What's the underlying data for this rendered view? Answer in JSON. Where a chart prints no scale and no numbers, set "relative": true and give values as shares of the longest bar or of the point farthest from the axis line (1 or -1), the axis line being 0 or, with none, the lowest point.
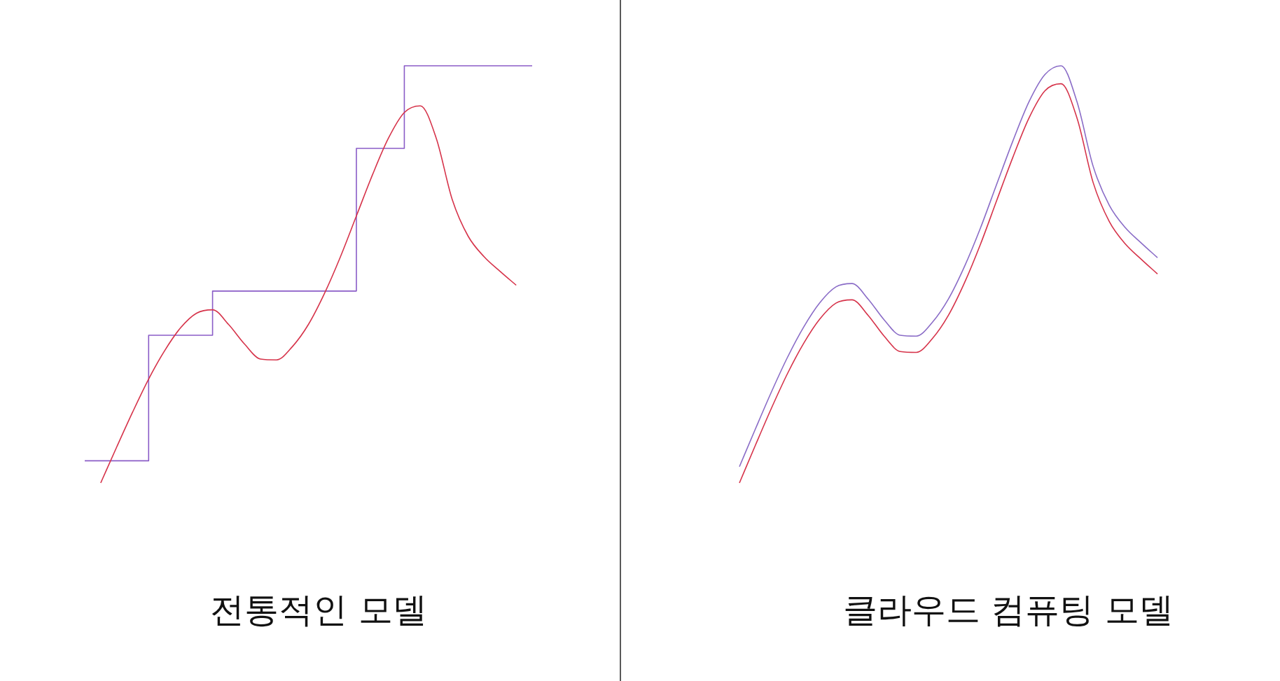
{
  "chart_data": [
    {
      "type": "line",
      "title": "전통적인 모델",
      "relative": true,
      "categories": [
        null,
        null,
        null,
        null,
        null,
        null,
        null,
        null,
        null,
        null,
        null,
        null,
        null,
        null,
        null,
        null,
        null,
        null,
        null,
        null,
        null,
        null,
        null,
        null,
        null,
        null,
        null,
        null,
        null
      ],
      "series": [
        {
          "type": "step",
          "color": "#8a5cc7",
          "values": [
            0.053,
            0.053,
            0.053,
            0.053,
            0.354,
            0.354,
            0.354,
            0.354,
            0.46,
            0.46,
            0.46,
            0.46,
            0.46,
            0.46,
            0.46,
            0.46,
            0.46,
            0.802,
            0.802,
            0.802,
            1,
            1,
            1,
            1,
            1,
            1,
            1,
            1,
            1
          ]
        },
        {
          "type": "line",
          "color": "#d6334a",
          "values": [
            null,
            0,
            0.086,
            0.17,
            0.249,
            0.317,
            0.372,
            0.407,
            0.415,
            0.38,
            0.333,
            0.297,
            0.295,
            0.327,
            0.38,
            0.454,
            0.542,
            0.64,
            0.738,
            0.826,
            0.888,
            0.904,
            0.826,
            0.679,
            0.591,
            0.542,
            0.507,
            0.474,
            null
          ]
        }
      ]
    },
    {
      "type": "line",
      "title": "클라우드 컴퓨팅 모델",
      "relative": true,
      "categories": [
        null,
        null,
        null,
        null,
        null,
        null,
        null,
        null,
        null,
        null,
        null,
        null,
        null,
        null,
        null,
        null,
        null,
        null,
        null,
        null,
        null,
        null,
        null,
        null,
        null,
        null,
        null
      ],
      "series": [
        {
          "type": "line",
          "color": "#8a6cc7",
          "values": [
            0.039,
            0.13,
            0.219,
            0.302,
            0.374,
            0.432,
            0.47,
            0.478,
            0.441,
            0.391,
            0.354,
            0.352,
            0.385,
            0.441,
            0.519,
            0.612,
            0.716,
            0.819,
            0.913,
            0.979,
            1,
            0.913,
            0.759,
            0.666,
            0.612,
            0.575,
            0.54
          ]
        },
        {
          "type": "line",
          "color": "#d6334a",
          "values": [
            0,
            0.091,
            0.18,
            0.263,
            0.335,
            0.393,
            0.431,
            0.439,
            0.402,
            0.352,
            0.315,
            0.313,
            0.346,
            0.402,
            0.48,
            0.573,
            0.677,
            0.78,
            0.874,
            0.94,
            0.957,
            0.874,
            0.72,
            0.627,
            0.573,
            0.536,
            0.501
          ]
        }
      ]
    }
  ]
}
